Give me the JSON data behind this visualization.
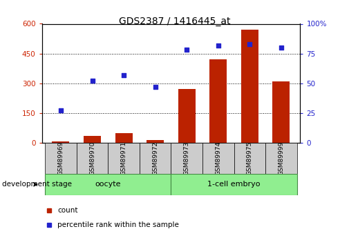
{
  "title": "GDS2387 / 1416445_at",
  "samples": [
    "GSM89969",
    "GSM89970",
    "GSM89971",
    "GSM89972",
    "GSM89973",
    "GSM89974",
    "GSM89975",
    "GSM89999"
  ],
  "count_values": [
    8,
    35,
    50,
    15,
    270,
    420,
    570,
    310
  ],
  "percentile_values": [
    27,
    52,
    57,
    47,
    78,
    82,
    83,
    80
  ],
  "groups": [
    {
      "label": "oocyte",
      "indices": [
        0,
        1,
        2,
        3
      ],
      "color": "#90EE90"
    },
    {
      "label": "1-cell embryo",
      "indices": [
        4,
        5,
        6,
        7
      ],
      "color": "#90EE90"
    }
  ],
  "left_ylim": [
    0,
    600
  ],
  "right_ylim": [
    0,
    100
  ],
  "left_yticks": [
    0,
    150,
    300,
    450,
    600
  ],
  "right_yticks": [
    0,
    25,
    50,
    75,
    100
  ],
  "right_yticklabels": [
    "0",
    "25",
    "50",
    "75",
    "100%"
  ],
  "bar_color": "#BB2200",
  "scatter_color": "#2222CC",
  "bar_width": 0.55,
  "title_fontsize": 10,
  "axis_label_color_left": "#CC2200",
  "axis_label_color_right": "#2222CC",
  "grid_color": "black",
  "bg_color": "#ffffff",
  "stage_label": "development stage",
  "legend_count_label": "count",
  "legend_percentile_label": "percentile rank within the sample"
}
